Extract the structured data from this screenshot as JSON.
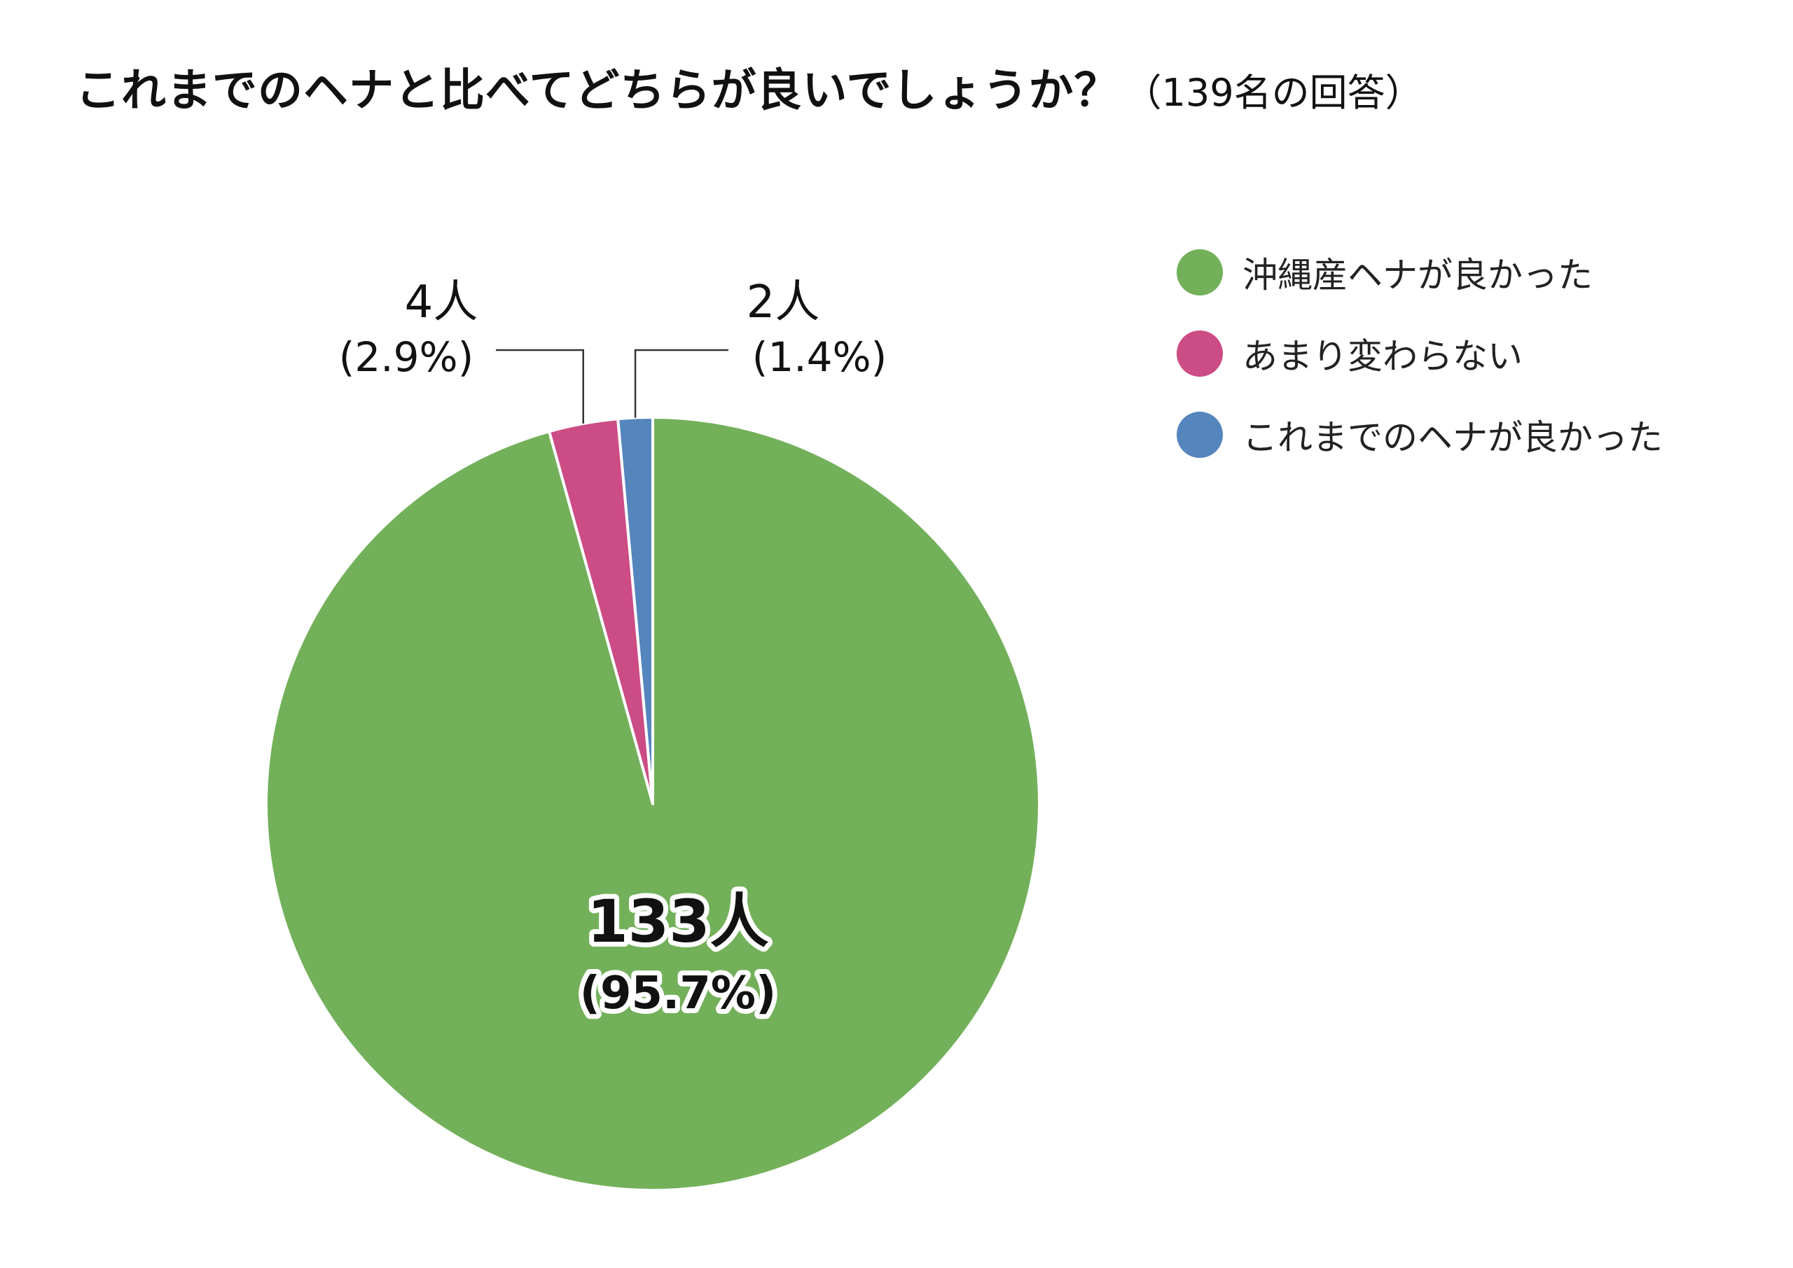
{
  "title": {
    "main": "これまでのヘナと比べてどちらが良いでしょうか？",
    "sub": "（139名の回答）"
  },
  "legend": {
    "items": [
      {
        "label": "沖縄産ヘナが良かった",
        "color": "#73b05a"
      },
      {
        "label": "あまり変わらない",
        "color": "#cc4c85"
      },
      {
        "label": "これまでのヘナが良かった",
        "color": "#5585bd"
      }
    ]
  },
  "chart_data": {
    "type": "pie",
    "title": "これまでのヘナと比べてどちらが良いでしょうか？",
    "total": 139,
    "start": "12 o'clock, clockwise",
    "slices": [
      {
        "name": "沖縄産ヘナが良かった",
        "value": 133,
        "count_label": "133人",
        "percent_label": "(95.7%)",
        "color": "#73b05a",
        "label_position": "inside"
      },
      {
        "name": "あまり変わらない",
        "value": 4,
        "count_label": "4人",
        "percent_label": "(2.9%)",
        "color": "#cc4c85",
        "label_position": "outside-left"
      },
      {
        "name": "これまでのヘナが良かった",
        "value": 2,
        "count_label": "2人",
        "percent_label": "(1.4%)",
        "color": "#5585bd",
        "label_position": "outside-right"
      }
    ]
  }
}
